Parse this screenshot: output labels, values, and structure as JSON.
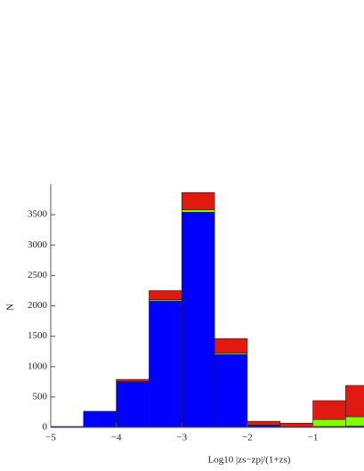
{
  "chart_data": {
    "type": "stacked-histogram",
    "xlabel": "Log10 |zs−zp|/(1+zs)",
    "ylabel": "N",
    "bins": [
      -5,
      -4.5,
      -4,
      -3.5,
      -3,
      -2.5,
      -2,
      -1.5,
      -1,
      -0.5,
      0
    ],
    "series": [
      {
        "color": "#0000ff",
        "values": [
          15,
          265,
          745,
          2080,
          3540,
          1200,
          30,
          10,
          15,
          20
        ]
      },
      {
        "color": "#7fff00",
        "values": [
          0,
          0,
          10,
          20,
          40,
          20,
          10,
          0,
          115,
          155
        ]
      },
      {
        "color": "#e01a10",
        "values": [
          0,
          0,
          35,
          150,
          285,
          240,
          60,
          60,
          310,
          515
        ]
      }
    ],
    "xlim": [
      -5,
      -0.22
    ],
    "ylim": [
      0,
      4000
    ],
    "xticks": [
      {
        "value": -5,
        "label": "−5"
      },
      {
        "value": -4,
        "label": "−4"
      },
      {
        "value": -3,
        "label": "−3"
      },
      {
        "value": -2,
        "label": "−2"
      },
      {
        "value": -1,
        "label": "−1"
      }
    ],
    "yticks": [
      0,
      500,
      1000,
      1500,
      2000,
      2500,
      3000,
      3500
    ]
  }
}
